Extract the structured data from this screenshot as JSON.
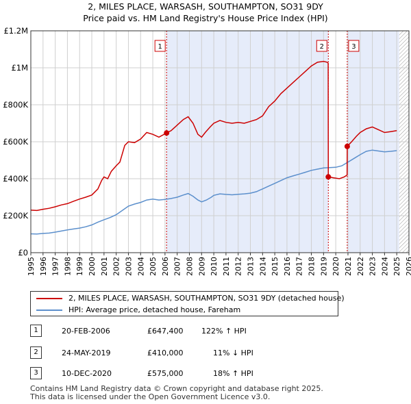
{
  "header": {
    "title": "2, MILES PLACE, WARSASH, SOUTHAMPTON, SO31 9DY",
    "subtitle": "Price paid vs. HM Land Registry's House Price Index (HPI)"
  },
  "chart_data": {
    "type": "line",
    "title": "2, MILES PLACE, WARSASH, SOUTHAMPTON, SO31 9DY",
    "subtitle": "Price paid vs. HM Land Registry's House Price Index (HPI)",
    "xlim": [
      1995,
      2026
    ],
    "ylim": [
      0,
      1200000
    ],
    "x_ticks": [
      "1995",
      "1996",
      "1997",
      "1998",
      "1999",
      "2000",
      "2001",
      "2002",
      "2003",
      "2004",
      "2005",
      "2006",
      "2007",
      "2008",
      "2009",
      "2010",
      "2011",
      "2012",
      "2013",
      "2014",
      "2015",
      "2016",
      "2017",
      "2018",
      "2019",
      "2020",
      "2021",
      "2022",
      "2023",
      "2024",
      "2025",
      "2026"
    ],
    "y_ticks": [
      {
        "value": 0,
        "label": "£0"
      },
      {
        "value": 200000,
        "label": "£200K"
      },
      {
        "value": 400000,
        "label": "£400K"
      },
      {
        "value": 600000,
        "label": "£600K"
      },
      {
        "value": 800000,
        "label": "£800K"
      },
      {
        "value": 1000000,
        "label": "£1M"
      },
      {
        "value": 1200000,
        "label": "£1.2M"
      }
    ],
    "grid": true,
    "colors": {
      "property": "#cc0000",
      "hpi": "#5b8fcc",
      "shade": "#e6ecfa",
      "grid": "#cfcfcf",
      "hatch": "#999999"
    },
    "shaded_ranges": [
      [
        2006.13,
        2019.39
      ],
      [
        2020.94,
        2025.2
      ]
    ],
    "future_start": 2025.2,
    "series": [
      {
        "name": "2, MILES PLACE, WARSASH, SOUTHAMPTON, SO31 9DY (detached house)",
        "key": "property",
        "points": [
          [
            1995.0,
            230000
          ],
          [
            1995.5,
            228000
          ],
          [
            1996.0,
            235000
          ],
          [
            1996.5,
            240000
          ],
          [
            1997.0,
            248000
          ],
          [
            1997.5,
            258000
          ],
          [
            1998.0,
            265000
          ],
          [
            1998.5,
            278000
          ],
          [
            1999.0,
            290000
          ],
          [
            1999.5,
            300000
          ],
          [
            2000.0,
            312000
          ],
          [
            2000.5,
            345000
          ],
          [
            2000.8,
            390000
          ],
          [
            2001.0,
            410000
          ],
          [
            2001.3,
            400000
          ],
          [
            2001.6,
            440000
          ],
          [
            2002.0,
            470000
          ],
          [
            2002.3,
            490000
          ],
          [
            2002.7,
            580000
          ],
          [
            2003.0,
            600000
          ],
          [
            2003.5,
            595000
          ],
          [
            2004.0,
            615000
          ],
          [
            2004.5,
            650000
          ],
          [
            2005.0,
            640000
          ],
          [
            2005.5,
            625000
          ],
          [
            2006.13,
            647400
          ],
          [
            2006.5,
            660000
          ],
          [
            2007.0,
            690000
          ],
          [
            2007.5,
            720000
          ],
          [
            2007.9,
            735000
          ],
          [
            2008.3,
            700000
          ],
          [
            2008.7,
            640000
          ],
          [
            2009.0,
            625000
          ],
          [
            2009.3,
            650000
          ],
          [
            2009.7,
            680000
          ],
          [
            2010.0,
            700000
          ],
          [
            2010.5,
            715000
          ],
          [
            2011.0,
            705000
          ],
          [
            2011.5,
            700000
          ],
          [
            2012.0,
            705000
          ],
          [
            2012.5,
            700000
          ],
          [
            2013.0,
            710000
          ],
          [
            2013.5,
            720000
          ],
          [
            2014.0,
            740000
          ],
          [
            2014.5,
            790000
          ],
          [
            2015.0,
            820000
          ],
          [
            2015.5,
            860000
          ],
          [
            2016.0,
            890000
          ],
          [
            2016.5,
            920000
          ],
          [
            2017.0,
            950000
          ],
          [
            2017.5,
            980000
          ],
          [
            2018.0,
            1010000
          ],
          [
            2018.5,
            1030000
          ],
          [
            2019.0,
            1035000
          ],
          [
            2019.3,
            1030000
          ],
          [
            2019.38,
            1025000
          ],
          [
            2019.39,
            410000
          ],
          [
            2019.8,
            405000
          ],
          [
            2020.3,
            400000
          ],
          [
            2020.7,
            410000
          ],
          [
            2020.93,
            420000
          ],
          [
            2020.94,
            575000
          ],
          [
            2021.3,
            600000
          ],
          [
            2021.7,
            630000
          ],
          [
            2022.0,
            650000
          ],
          [
            2022.5,
            670000
          ],
          [
            2023.0,
            680000
          ],
          [
            2023.5,
            665000
          ],
          [
            2024.0,
            650000
          ],
          [
            2024.5,
            655000
          ],
          [
            2025.0,
            660000
          ]
        ]
      },
      {
        "name": "HPI: Average price, detached house, Fareham",
        "key": "hpi",
        "points": [
          [
            1995.0,
            102000
          ],
          [
            1995.5,
            101000
          ],
          [
            1996.0,
            104000
          ],
          [
            1996.5,
            106000
          ],
          [
            1997.0,
            111000
          ],
          [
            1997.5,
            117000
          ],
          [
            1998.0,
            123000
          ],
          [
            1998.5,
            128000
          ],
          [
            1999.0,
            133000
          ],
          [
            1999.5,
            140000
          ],
          [
            2000.0,
            150000
          ],
          [
            2000.5,
            165000
          ],
          [
            2001.0,
            178000
          ],
          [
            2001.5,
            190000
          ],
          [
            2002.0,
            205000
          ],
          [
            2002.5,
            228000
          ],
          [
            2003.0,
            252000
          ],
          [
            2003.5,
            263000
          ],
          [
            2004.0,
            272000
          ],
          [
            2004.5,
            285000
          ],
          [
            2005.0,
            290000
          ],
          [
            2005.5,
            285000
          ],
          [
            2006.0,
            288000
          ],
          [
            2006.5,
            293000
          ],
          [
            2007.0,
            300000
          ],
          [
            2007.5,
            312000
          ],
          [
            2007.9,
            320000
          ],
          [
            2008.3,
            305000
          ],
          [
            2008.7,
            285000
          ],
          [
            2009.0,
            275000
          ],
          [
            2009.4,
            285000
          ],
          [
            2009.8,
            300000
          ],
          [
            2010.0,
            310000
          ],
          [
            2010.5,
            318000
          ],
          [
            2011.0,
            315000
          ],
          [
            2011.5,
            313000
          ],
          [
            2012.0,
            316000
          ],
          [
            2012.5,
            318000
          ],
          [
            2013.0,
            322000
          ],
          [
            2013.5,
            330000
          ],
          [
            2014.0,
            345000
          ],
          [
            2014.5,
            360000
          ],
          [
            2015.0,
            375000
          ],
          [
            2015.5,
            390000
          ],
          [
            2016.0,
            405000
          ],
          [
            2016.5,
            415000
          ],
          [
            2017.0,
            425000
          ],
          [
            2017.5,
            435000
          ],
          [
            2018.0,
            445000
          ],
          [
            2018.5,
            452000
          ],
          [
            2019.0,
            458000
          ],
          [
            2019.5,
            460000
          ],
          [
            2020.0,
            462000
          ],
          [
            2020.5,
            470000
          ],
          [
            2021.0,
            490000
          ],
          [
            2021.5,
            510000
          ],
          [
            2022.0,
            530000
          ],
          [
            2022.5,
            548000
          ],
          [
            2023.0,
            555000
          ],
          [
            2023.5,
            550000
          ],
          [
            2024.0,
            545000
          ],
          [
            2024.5,
            548000
          ],
          [
            2025.0,
            552000
          ]
        ]
      }
    ],
    "sales": [
      {
        "id": "1",
        "x": 2006.13,
        "price": 647400
      },
      {
        "id": "2",
        "x": 2019.39,
        "price": 410000
      },
      {
        "id": "3",
        "x": 2020.94,
        "price": 575000
      }
    ]
  },
  "legend": {
    "items": [
      {
        "label": "2, MILES PLACE, WARSASH, SOUTHAMPTON, SO31 9DY (detached house)",
        "color": "#cc0000"
      },
      {
        "label": "HPI: Average price, detached house, Fareham",
        "color": "#5b8fcc"
      }
    ]
  },
  "transactions": [
    {
      "id": "1",
      "date": "20-FEB-2006",
      "price": "£647,400",
      "hpi": "122% ↑ HPI"
    },
    {
      "id": "2",
      "date": "24-MAY-2019",
      "price": "£410,000",
      "hpi": "11% ↓ HPI"
    },
    {
      "id": "3",
      "date": "10-DEC-2020",
      "price": "£575,000",
      "hpi": "18% ↑ HPI"
    }
  ],
  "footer": {
    "line1": "Contains HM Land Registry data © Crown copyright and database right 2025.",
    "line2": "This data is licensed under the Open Government Licence v3.0."
  }
}
